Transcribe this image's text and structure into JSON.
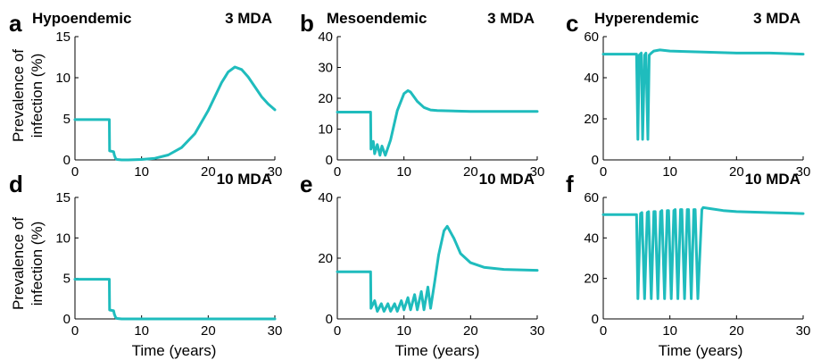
{
  "ylabel_shared": [
    "Prevalence of",
    "infection (%)"
  ],
  "xlabel_shared": "Time (years)",
  "colors": {
    "series": "#1fbcbd",
    "axis": "#000000"
  },
  "chart_data": [
    {
      "panel": "a",
      "title": "Hypoendemic",
      "subtitle": "3 MDA",
      "type": "line",
      "xlim": [
        0,
        30
      ],
      "ylim": [
        0,
        15
      ],
      "xticks": [
        0,
        10,
        20,
        30
      ],
      "yticks": [
        0,
        5,
        10,
        15
      ],
      "x": [
        0,
        5,
        5.15,
        5.2,
        5.8,
        5.9,
        6.1,
        6.3,
        7,
        8,
        10,
        12,
        14,
        16,
        18,
        20,
        21,
        22,
        23,
        24,
        25,
        26,
        27,
        28,
        29,
        30
      ],
      "y": [
        4.9,
        4.9,
        4.9,
        1.1,
        1.0,
        0.6,
        0.2,
        0.05,
        0.0,
        0.0,
        0.05,
        0.2,
        0.6,
        1.5,
        3.2,
        6.0,
        7.7,
        9.4,
        10.7,
        11.3,
        11.0,
        10.1,
        8.9,
        7.7,
        6.8,
        6.1
      ]
    },
    {
      "panel": "b",
      "title": "Mesoendemic",
      "subtitle": "3 MDA",
      "type": "line",
      "xlim": [
        0,
        30
      ],
      "ylim": [
        0,
        40
      ],
      "xticks": [
        0,
        10,
        20,
        30
      ],
      "yticks": [
        0,
        10,
        20,
        30,
        40
      ],
      "x": [
        0,
        5,
        5.05,
        5.4,
        5.6,
        6.0,
        6.4,
        6.7,
        7.2,
        8,
        9,
        10,
        10.6,
        11,
        12,
        13,
        14,
        15,
        20,
        25,
        30
      ],
      "y": [
        15.5,
        15.5,
        3.5,
        6.0,
        2.0,
        5.0,
        1.5,
        4.5,
        1.5,
        6.5,
        16.0,
        21.5,
        22.5,
        22.0,
        19.0,
        17.0,
        16.2,
        16.0,
        15.7,
        15.7,
        15.7
      ]
    },
    {
      "panel": "c",
      "title": "Hyperendemic",
      "subtitle": "3 MDA",
      "type": "line",
      "xlim": [
        0,
        30
      ],
      "ylim": [
        0,
        60
      ],
      "xticks": [
        0,
        10,
        20,
        30
      ],
      "yticks": [
        0,
        20,
        40,
        60
      ],
      "x": [
        0,
        5,
        5.2,
        5.4,
        5.7,
        5.9,
        6.2,
        6.4,
        6.7,
        6.9,
        7.2,
        7.6,
        8.5,
        10,
        15,
        20,
        25,
        30
      ],
      "y": [
        51.5,
        51.5,
        10,
        51,
        52,
        10,
        51,
        52,
        10,
        51,
        52,
        53,
        53.5,
        53,
        52.5,
        52,
        52,
        51.5
      ]
    },
    {
      "panel": "d",
      "title": "",
      "subtitle": "10 MDA",
      "type": "line",
      "xlim": [
        0,
        30
      ],
      "ylim": [
        0,
        15
      ],
      "xticks": [
        0,
        10,
        20,
        30
      ],
      "yticks": [
        0,
        5,
        10,
        15
      ],
      "x": [
        0,
        5,
        5.15,
        5.2,
        5.8,
        5.9,
        6.1,
        6.3,
        7,
        8,
        30
      ],
      "y": [
        4.9,
        4.9,
        4.9,
        1.1,
        1.0,
        0.6,
        0.2,
        0.05,
        0.0,
        0.0,
        0.0
      ]
    },
    {
      "panel": "e",
      "title": "",
      "subtitle": "10 MDA",
      "type": "line",
      "xlim": [
        0,
        30
      ],
      "ylim": [
        0,
        40
      ],
      "xticks": [
        0,
        10,
        20,
        30
      ],
      "yticks": [
        0,
        20,
        40
      ],
      "x": [
        0,
        5,
        5.05,
        5.6,
        6.0,
        6.6,
        7.0,
        7.6,
        8.0,
        8.6,
        9.0,
        9.6,
        10.0,
        10.6,
        11.0,
        11.6,
        12.0,
        12.6,
        13.0,
        13.6,
        14.0,
        14.6,
        15.2,
        16.0,
        16.5,
        17.5,
        18.5,
        20,
        22,
        25,
        30
      ],
      "y": [
        15.5,
        15.5,
        3.5,
        6.0,
        2.5,
        5.0,
        2.5,
        5.0,
        2.5,
        5.0,
        2.5,
        6.0,
        3.0,
        7.0,
        3.0,
        8.0,
        3.0,
        9.0,
        3.0,
        10.5,
        3.5,
        12.0,
        21.0,
        29.0,
        30.5,
        26.5,
        21.5,
        18.5,
        17.0,
        16.3,
        16.0
      ]
    },
    {
      "panel": "f",
      "title": "",
      "subtitle": "10 MDA",
      "type": "line",
      "xlim": [
        0,
        30
      ],
      "ylim": [
        0,
        60
      ],
      "xticks": [
        0,
        10,
        20,
        30
      ],
      "yticks": [
        0,
        20,
        40,
        60
      ],
      "x": [
        0,
        5,
        5.2,
        5.6,
        5.8,
        6.2,
        6.6,
        6.8,
        7.2,
        7.6,
        7.8,
        8.2,
        8.6,
        8.8,
        9.2,
        9.6,
        9.8,
        10.2,
        10.6,
        10.8,
        11.2,
        11.6,
        11.8,
        12.2,
        12.6,
        12.8,
        13.2,
        13.6,
        13.8,
        14.2,
        14.8,
        15,
        16,
        18,
        20,
        25,
        30
      ],
      "y": [
        51.5,
        51.5,
        10,
        52,
        52.5,
        10,
        52.5,
        53,
        10,
        53,
        53,
        10,
        53,
        53.5,
        10,
        53.5,
        53.5,
        10,
        53.5,
        54,
        10,
        54,
        54,
        10,
        54,
        54,
        10,
        54,
        54,
        10,
        54,
        55,
        54.5,
        53.5,
        53,
        52.5,
        52
      ]
    }
  ]
}
